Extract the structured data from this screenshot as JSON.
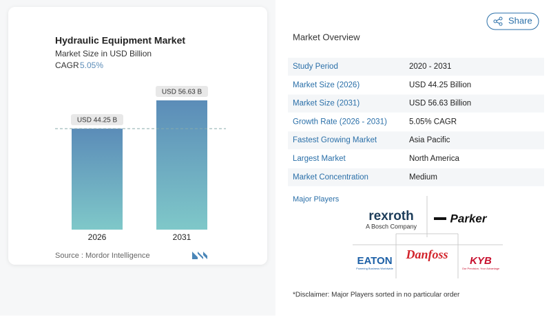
{
  "chart_data": {
    "type": "bar",
    "title": "Hydraulic Equipment Market",
    "subtitle": "Market Size in USD Billion",
    "cagr_label": "CAGR",
    "cagr_value": "5.05%",
    "categories": [
      "2026",
      "2031"
    ],
    "values": [
      44.25,
      56.63
    ],
    "value_labels": [
      "USD 44.25 B",
      "USD 56.63 B"
    ],
    "colors": [
      "#5b8cb8",
      "#7fc8c9"
    ],
    "source": "Source : Mordor Intelligence"
  },
  "share": "Share",
  "overview": {
    "title": "Market Overview",
    "rows": [
      [
        "Study Period",
        "2020 - 2031"
      ],
      [
        "Market Size (2026)",
        "USD 44.25 Billion"
      ],
      [
        "Market Size (2031)",
        "USD 56.63 Billion"
      ],
      [
        "Growth Rate (2026 - 2031)",
        "5.05% CAGR"
      ],
      [
        "Fastest Growing Market",
        "Asia Pacific"
      ],
      [
        "Largest Market",
        "North America"
      ],
      [
        "Market Concentration",
        "Medium"
      ]
    ]
  },
  "players": {
    "title": "Major Players",
    "rexroth": "rexroth",
    "rexroth_sub": "A Bosch Company",
    "parker": "Parker",
    "eaton": "EATON",
    "eaton_sub": "Powering Business Worldwide",
    "danfoss": "Danfoss",
    "kyb": "KYB",
    "kyb_sub": "Our Precision, Your Advantage"
  },
  "disclaimer": "*Disclaimer: Major Players sorted in no particular order"
}
